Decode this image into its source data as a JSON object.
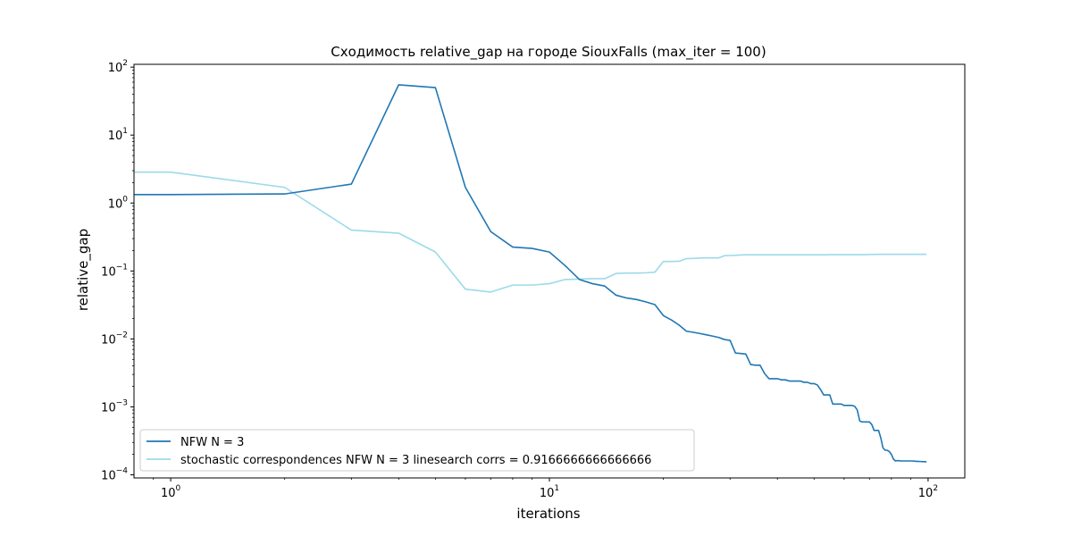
{
  "chart_data": {
    "type": "line",
    "title": "Сходимость relative_gap на городе SiouxFalls  (max_iter = 100)",
    "xlabel": "iterations",
    "ylabel": "relative_gap",
    "xscale": "log",
    "yscale": "log",
    "xlim": [
      0.8,
      125
    ],
    "ylim": [
      9e-05,
      110
    ],
    "xticks": [
      {
        "value": 1,
        "base": "10",
        "exp": "0"
      },
      {
        "value": 10,
        "base": "10",
        "exp": "1"
      },
      {
        "value": 100,
        "base": "10",
        "exp": "2"
      }
    ],
    "yticks": [
      {
        "value": 0.0001,
        "base": "10",
        "exp": "−4"
      },
      {
        "value": 0.001,
        "base": "10",
        "exp": "−3"
      },
      {
        "value": 0.01,
        "base": "10",
        "exp": "−2"
      },
      {
        "value": 0.1,
        "base": "10",
        "exp": "−1"
      },
      {
        "value": 1,
        "base": "10",
        "exp": "0"
      },
      {
        "value": 10,
        "base": "10",
        "exp": "1"
      },
      {
        "value": 100,
        "base": "10",
        "exp": "2"
      }
    ],
    "grid": false,
    "legend_placement": "lower-left",
    "series": [
      {
        "name": "NFW N = 3",
        "color": "#1f77b4",
        "x": [
          0,
          1,
          2,
          3,
          4,
          5,
          6,
          7,
          8,
          9,
          10,
          11,
          12,
          13,
          14,
          15,
          16,
          17,
          18,
          19,
          20,
          21,
          22,
          23,
          24,
          25,
          26,
          27,
          28,
          29,
          30,
          31,
          32,
          33,
          34,
          35,
          36,
          37,
          38,
          39,
          40,
          41,
          42,
          43,
          44,
          45,
          46,
          47,
          48,
          49,
          50,
          51,
          52,
          53,
          54,
          55,
          56,
          57,
          58,
          59,
          60,
          61,
          62,
          63,
          64,
          65,
          66,
          67,
          68,
          69,
          70,
          71,
          72,
          73,
          74,
          75,
          76,
          77,
          78,
          79,
          80,
          81,
          82,
          83,
          84,
          85,
          86,
          87,
          88,
          89,
          90,
          91,
          92,
          93,
          94,
          95,
          96,
          97,
          98,
          99
        ],
        "y": [
          1.33,
          1.33,
          1.36,
          1.9,
          55,
          50,
          1.7,
          0.38,
          0.225,
          0.215,
          0.19,
          0.12,
          0.075,
          0.065,
          0.06,
          0.044,
          0.04,
          0.038,
          0.035,
          0.032,
          0.022,
          0.019,
          0.016,
          0.013,
          0.0125,
          0.012,
          0.0115,
          0.011,
          0.0105,
          0.0098,
          0.0095,
          0.0062,
          0.0061,
          0.006,
          0.0042,
          0.0041,
          0.0041,
          0.0031,
          0.0026,
          0.0026,
          0.0026,
          0.0025,
          0.0025,
          0.0024,
          0.0024,
          0.0024,
          0.0024,
          0.0023,
          0.0023,
          0.0022,
          0.0022,
          0.0021,
          0.0018,
          0.0015,
          0.0015,
          0.0015,
          0.0011,
          0.0011,
          0.0011,
          0.0011,
          0.00105,
          0.00105,
          0.00105,
          0.00105,
          0.00102,
          0.0009,
          0.00062,
          0.0006,
          0.0006,
          0.0006,
          0.0006,
          0.00055,
          0.00045,
          0.00045,
          0.00045,
          0.00035,
          0.00025,
          0.00023,
          0.00023,
          0.00022,
          0.0002,
          0.00017,
          0.00016,
          0.000162,
          0.000161,
          0.00016,
          0.00016,
          0.00016,
          0.00016,
          0.00016,
          0.00016,
          0.00016,
          0.000159,
          0.000158,
          0.000158,
          0.000157,
          0.000157,
          0.000156,
          0.000156,
          0.000155
        ]
      },
      {
        "name": "stochastic correspondences NFW N = 3 linesearch corrs = 0.9166666666666666",
        "color": "#9cdae9",
        "x": [
          0,
          1,
          2,
          3,
          4,
          5,
          6,
          7,
          8,
          9,
          10,
          11,
          12,
          13,
          14,
          15,
          16,
          17,
          18,
          19,
          20,
          21,
          22,
          23,
          24,
          25,
          26,
          27,
          28,
          29,
          30,
          31,
          32,
          33,
          34,
          35,
          36,
          37,
          38,
          39,
          40,
          41,
          42,
          43,
          44,
          45,
          46,
          47,
          48,
          49,
          50,
          51,
          52,
          53,
          54,
          55,
          56,
          57,
          58,
          59,
          60,
          61,
          62,
          63,
          64,
          65,
          66,
          67,
          68,
          69,
          70,
          71,
          72,
          73,
          74,
          75,
          76,
          77,
          78,
          79,
          80,
          81,
          82,
          83,
          84,
          85,
          86,
          87,
          88,
          89,
          90,
          91,
          92,
          93,
          94,
          95,
          96,
          97,
          98,
          99
        ],
        "y": [
          2.85,
          2.85,
          1.7,
          0.4,
          0.36,
          0.19,
          0.054,
          0.049,
          0.062,
          0.062,
          0.065,
          0.075,
          0.076,
          0.077,
          0.077,
          0.092,
          0.093,
          0.093,
          0.094,
          0.096,
          0.138,
          0.138,
          0.139,
          0.152,
          0.153,
          0.155,
          0.156,
          0.156,
          0.156,
          0.168,
          0.169,
          0.17,
          0.172,
          0.173,
          0.173,
          0.173,
          0.173,
          0.173,
          0.173,
          0.173,
          0.173,
          0.173,
          0.173,
          0.173,
          0.173,
          0.173,
          0.173,
          0.173,
          0.173,
          0.173,
          0.173,
          0.173,
          0.173,
          0.173,
          0.173,
          0.174,
          0.174,
          0.174,
          0.174,
          0.174,
          0.174,
          0.174,
          0.174,
          0.174,
          0.174,
          0.174,
          0.174,
          0.174,
          0.174,
          0.174,
          0.175,
          0.175,
          0.175,
          0.176,
          0.176,
          0.176,
          0.176,
          0.176,
          0.176,
          0.176,
          0.176,
          0.176,
          0.176,
          0.176,
          0.176,
          0.176,
          0.176,
          0.176,
          0.176,
          0.176,
          0.176,
          0.176,
          0.176,
          0.176,
          0.176,
          0.176,
          0.176,
          0.176,
          0.176,
          0.176
        ]
      }
    ]
  }
}
